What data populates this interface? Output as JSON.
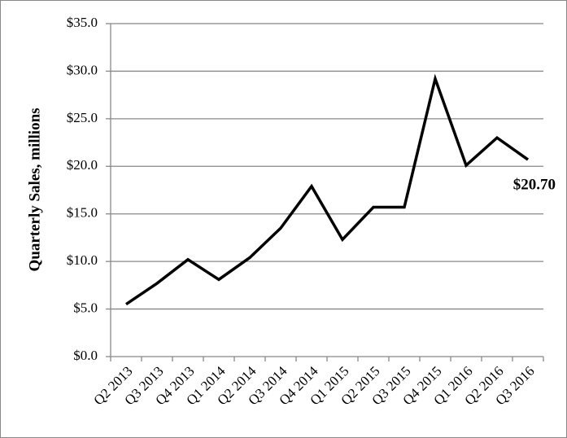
{
  "chart_data": {
    "type": "line",
    "y_label": "Quarterly Sales, millions",
    "categories": [
      "Q2 2013",
      "Q3 2013",
      "Q4 2013",
      "Q1 2014",
      "Q2 2014",
      "Q3 2014",
      "Q4 2014",
      "Q1 2015",
      "Q2 2015",
      "Q3 2015",
      "Q4 2015",
      "Q1 2016",
      "Q2 2016",
      "Q3 2016"
    ],
    "values": [
      5.5,
      7.7,
      10.2,
      8.1,
      10.4,
      13.5,
      17.9,
      12.3,
      15.7,
      15.7,
      29.2,
      20.1,
      23.0,
      20.7
    ],
    "value_labels": [
      null,
      null,
      null,
      null,
      null,
      null,
      null,
      null,
      null,
      null,
      null,
      null,
      null,
      "$20.70"
    ],
    "color": "#000000",
    "ylim": [
      0,
      35
    ],
    "yticks": [
      {
        "value": 0,
        "label": "$0.0"
      },
      {
        "value": 5,
        "label": "$5.0"
      },
      {
        "value": 10,
        "label": "$10.0"
      },
      {
        "value": 15,
        "label": "$15.0"
      },
      {
        "value": 20,
        "label": "$20.0"
      },
      {
        "value": 25,
        "label": "$25.0"
      },
      {
        "value": 30,
        "label": "$30.0"
      },
      {
        "value": 35,
        "label": "$35.0"
      }
    ],
    "grid": true
  }
}
